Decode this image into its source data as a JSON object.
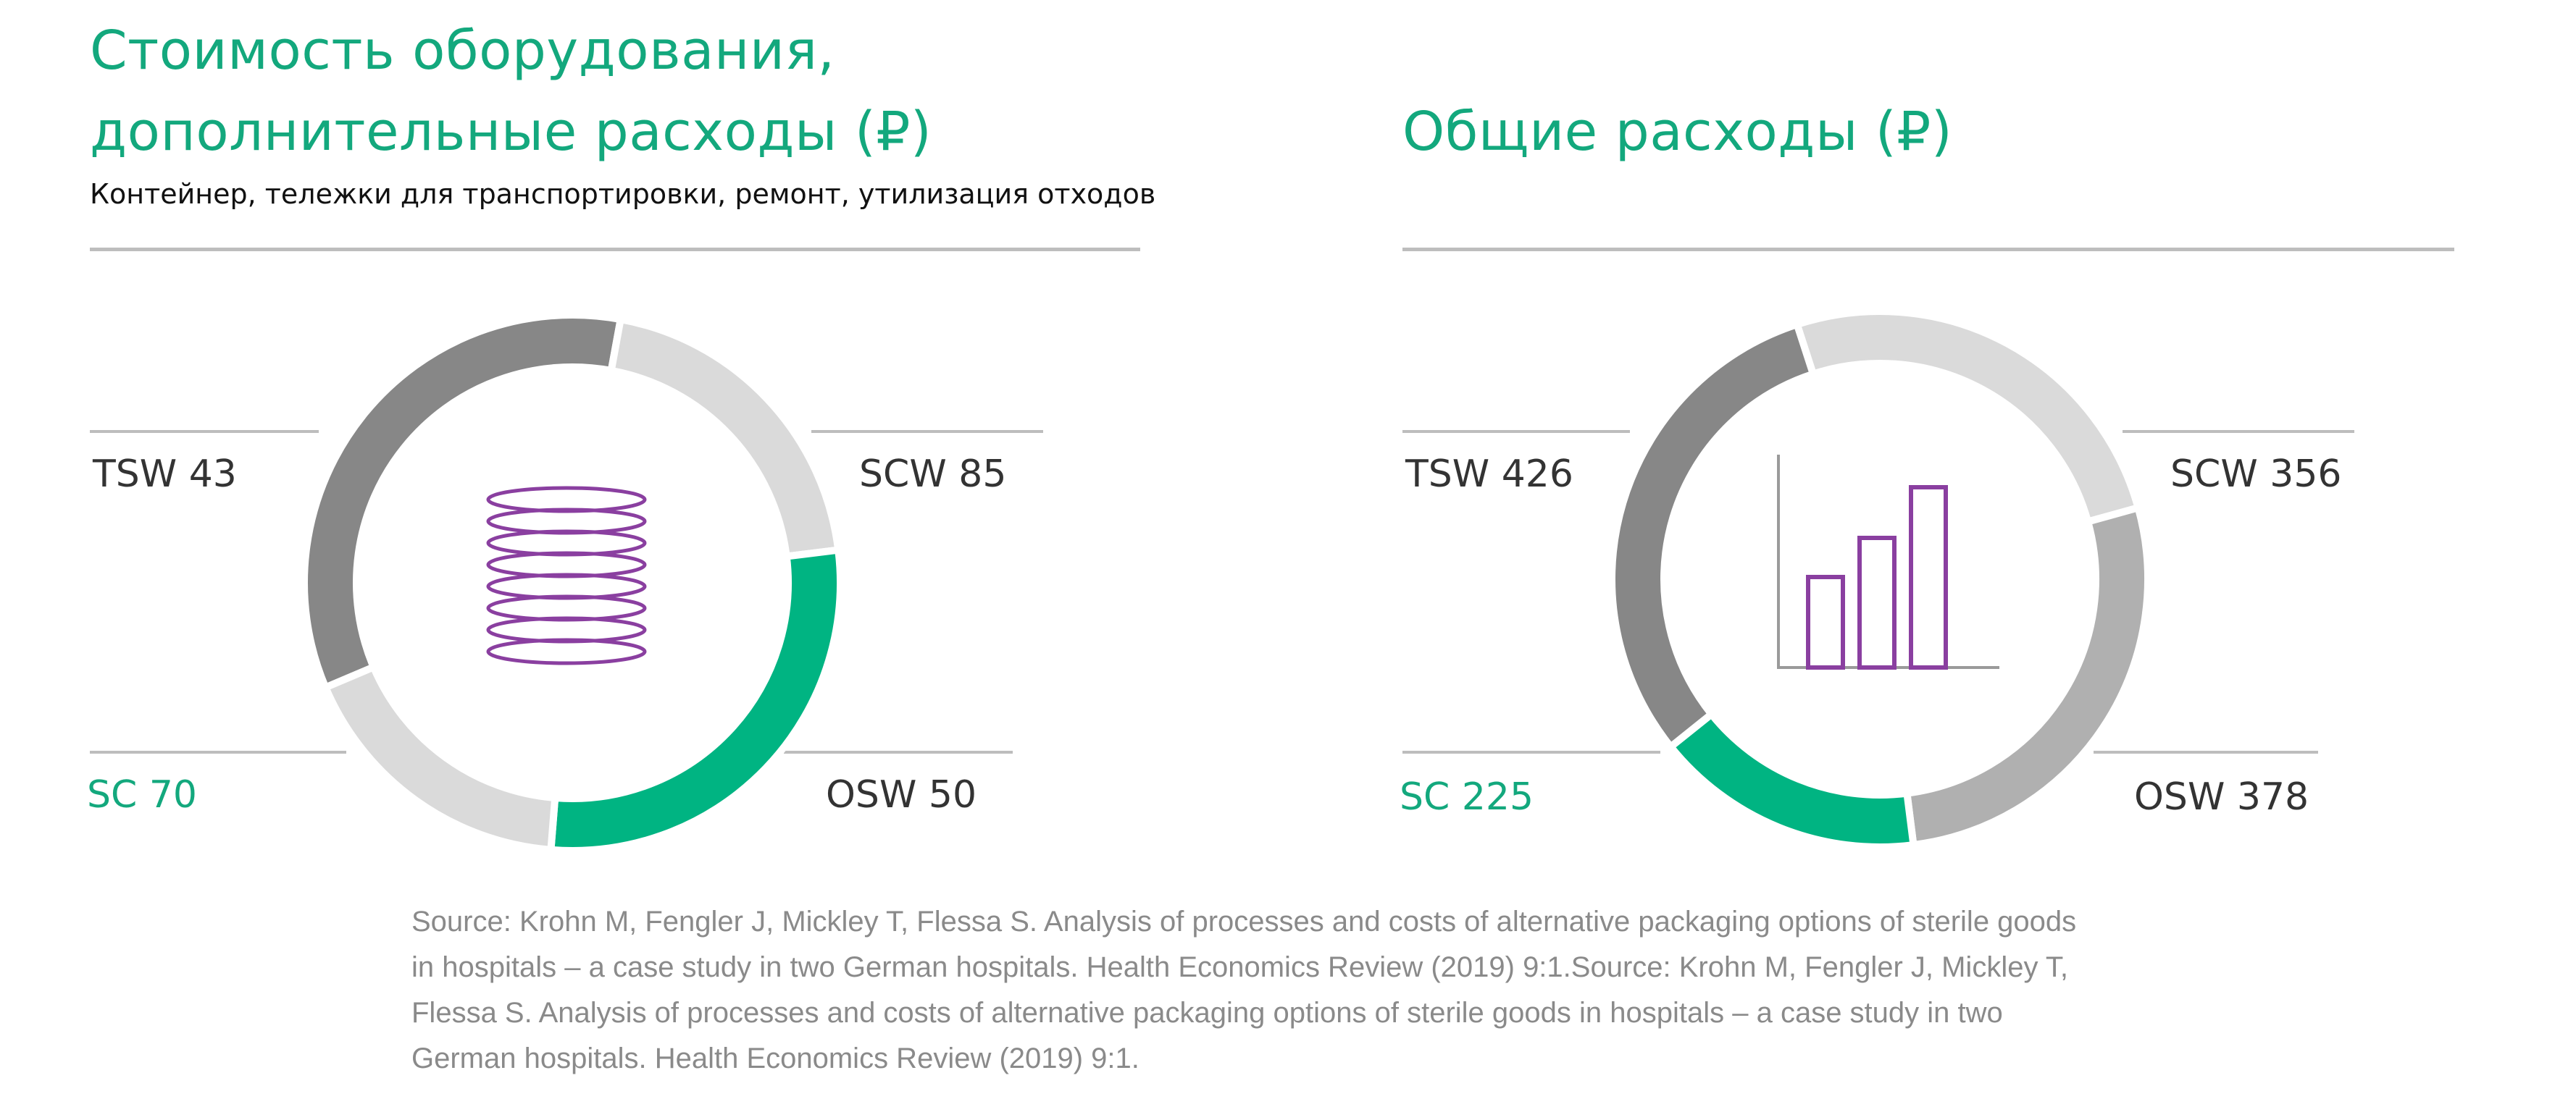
{
  "colors": {
    "accent": "#13a87d",
    "sc": "#00b482",
    "dark_gray": "#878787",
    "mid_gray": "#b0b0b0",
    "light_gray": "#dadada",
    "icon": "#8a3fa0",
    "text": "#333333"
  },
  "chart_data": [
    {
      "type": "pie",
      "title": "Стоимость оборудования, дополнительные расходы (₽)",
      "title_lines": [
        "Стоимость оборудования,",
        "дополнительные расходы (₽)"
      ],
      "subtitle": "Контейнер, тележки для транспортировки, ремонт, утилизация отходов",
      "center_icon": "stacked-discs-icon",
      "slices": [
        {
          "name": "SCW",
          "value": 85,
          "label": "SCW 85",
          "color": "#878787"
        },
        {
          "name": "OSW",
          "value": 50,
          "label": "OSW 50",
          "color": "#dadada"
        },
        {
          "name": "SC",
          "value": 70,
          "label": "SC 70",
          "color": "#00b482"
        },
        {
          "name": "TSW",
          "value": 43,
          "label": "TSW 43",
          "color": "#dadada"
        }
      ]
    },
    {
      "type": "pie",
      "title": "Общие расходы (₽)",
      "title_lines": [
        "Общие расходы (₽)"
      ],
      "subtitle": "",
      "center_icon": "bar-chart-icon",
      "slices": [
        {
          "name": "SCW",
          "value": 356,
          "label": "SCW 356",
          "color": "#dadada"
        },
        {
          "name": "OSW",
          "value": 378,
          "label": "OSW 378",
          "color": "#b0b0b0"
        },
        {
          "name": "SC",
          "value": 225,
          "label": "SC 225",
          "color": "#00b482"
        },
        {
          "name": "TSW",
          "value": 426,
          "label": "TSW 426",
          "color": "#878787"
        }
      ]
    }
  ],
  "source": "Source: Krohn M, Fengler J, Mickley T, Flessa S. Analysis of processes and costs of alternative packaging options of sterile goods in hospitals – a case study in two German hospitals. Health Economics Review (2019) 9:1.Source: Krohn M, Fengler J, Mickley T, Flessa S. Analysis of processes and costs of alternative packaging options of sterile goods in hospitals – a case study in two German hospitals. Health Economics Review (2019) 9:1."
}
